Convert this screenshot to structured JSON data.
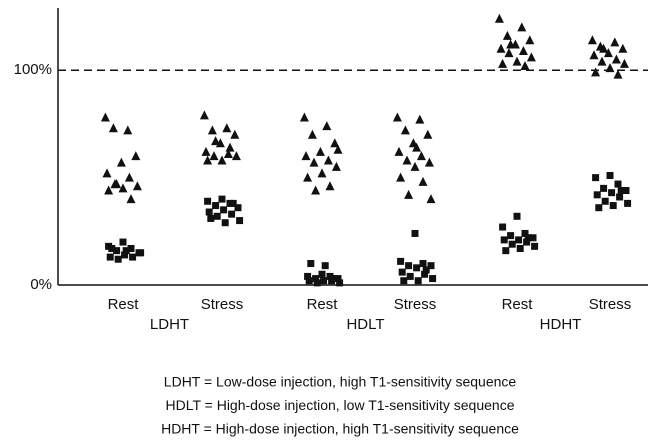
{
  "chart_data": {
    "type": "scatter",
    "categories": [
      "Rest",
      "Stress",
      "Rest",
      "Stress",
      "Rest",
      "Stress"
    ],
    "group_labels": [
      "LDHT",
      "HDLT",
      "HDHT"
    ],
    "ylim": [
      0,
      129
    ],
    "yticks": [
      {
        "value": 0,
        "label": "0%"
      },
      {
        "value": 100,
        "label": "100%"
      }
    ],
    "dashed_line": 100,
    "grid": false,
    "color": "#111111",
    "series": [
      {
        "marker": "triangle",
        "values": [
          [
            78,
            72,
            73,
            60,
            57,
            52,
            50,
            47,
            46,
            45,
            44,
            40,
            47
          ],
          [
            79,
            73,
            72,
            70,
            66,
            62,
            61,
            60,
            60,
            58,
            58,
            64,
            67
          ],
          [
            78,
            74,
            70,
            66,
            62,
            60,
            58,
            57,
            55,
            52,
            50,
            46,
            44,
            63
          ],
          [
            78,
            77,
            72,
            70,
            66,
            62,
            60,
            58,
            57,
            55,
            50,
            48,
            42,
            40,
            64
          ],
          [
            124,
            120,
            116,
            114,
            112,
            110,
            109,
            108,
            106,
            104,
            103,
            102,
            112
          ],
          [
            114,
            113,
            111,
            110,
            108,
            107,
            105,
            104,
            103,
            101,
            99,
            98,
            110
          ]
        ]
      },
      {
        "marker": "square",
        "values": [
          [
            20,
            18,
            17,
            16,
            15,
            14,
            13,
            13,
            12,
            15,
            16,
            17
          ],
          [
            40,
            39,
            38,
            37,
            36,
            35,
            34,
            33,
            32,
            30,
            29,
            31,
            38
          ],
          [
            5,
            4,
            4,
            3,
            3,
            2,
            2,
            2,
            1,
            1,
            9,
            10,
            3
          ],
          [
            24,
            11,
            10,
            9,
            9,
            8,
            6,
            5,
            4,
            3,
            2,
            2,
            7
          ],
          [
            32,
            27,
            24,
            23,
            22,
            21,
            21,
            20,
            19,
            18,
            17,
            16,
            22
          ],
          [
            51,
            50,
            47,
            45,
            44,
            43,
            42,
            41,
            39,
            38,
            37,
            36,
            44
          ]
        ]
      }
    ],
    "notes": [
      "LDHT = Low-dose injection, high T1-sensitivity sequence",
      "HDLT = High-dose injection, low T1-sensitivity sequence",
      "HDHT = High-dose injection, high T1-sensitivity sequence"
    ]
  }
}
